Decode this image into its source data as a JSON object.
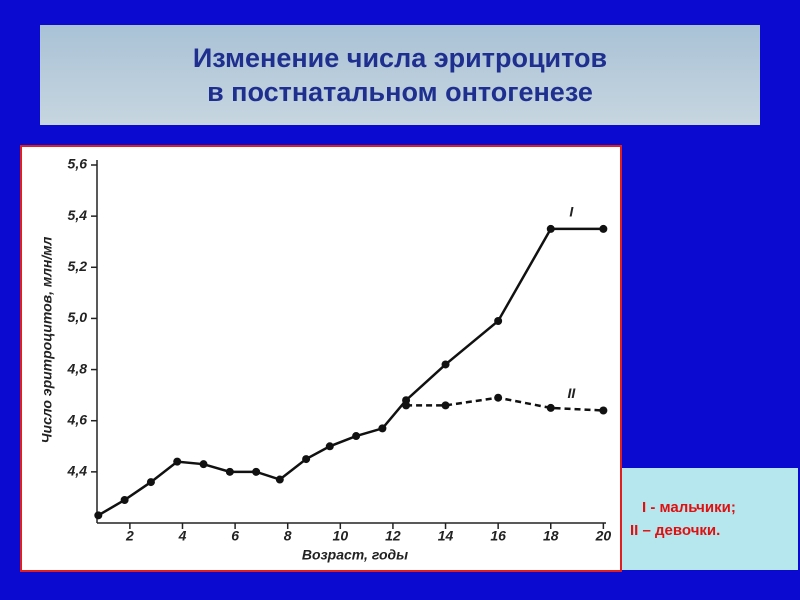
{
  "chart_data": {
    "type": "line",
    "title": [
      "Изменение числа эритроцитов",
      "в постнатальном онтогенезе"
    ],
    "y_label": "Число эритроцитов, млн/мл",
    "x_label": "Возраст, годы",
    "legend": [
      "I -  мальчики;",
      "II – девочки."
    ],
    "xlim": [
      0.75,
      20.1
    ],
    "xticks": [
      2,
      4,
      6,
      8,
      10,
      12,
      14,
      16,
      18,
      20
    ],
    "ylim": [
      4.2,
      5.6
    ],
    "yticks": [
      {
        "value": 4.4,
        "label": "4,4"
      },
      {
        "value": 4.6,
        "label": "4,6"
      },
      {
        "value": 4.8,
        "label": "4,8"
      },
      {
        "value": 5.0,
        "label": "5,0"
      },
      {
        "value": 5.2,
        "label": "5,2"
      },
      {
        "value": 5.4,
        "label": "5,4"
      },
      {
        "value": 5.6,
        "label": "5,6"
      }
    ],
    "series": [
      {
        "name": "I",
        "color": "#111111",
        "dashed": false,
        "x": [
          0.8,
          1.8,
          2.8,
          3.8,
          4.8,
          5.8,
          6.8,
          7.7,
          8.7,
          9.6,
          10.6,
          11.6,
          12.5,
          14,
          16,
          18,
          20
        ],
        "values": [
          4.23,
          4.29,
          4.36,
          4.44,
          4.43,
          4.4,
          4.4,
          4.37,
          4.45,
          4.5,
          4.54,
          4.57,
          4.68,
          4.82,
          4.99,
          5.35,
          5.35
        ]
      },
      {
        "name": "II",
        "color": "#111111",
        "dashed": true,
        "x": [
          12.5,
          14,
          16,
          18,
          20
        ],
        "values": [
          4.66,
          4.66,
          4.69,
          4.65,
          4.64
        ]
      }
    ]
  }
}
